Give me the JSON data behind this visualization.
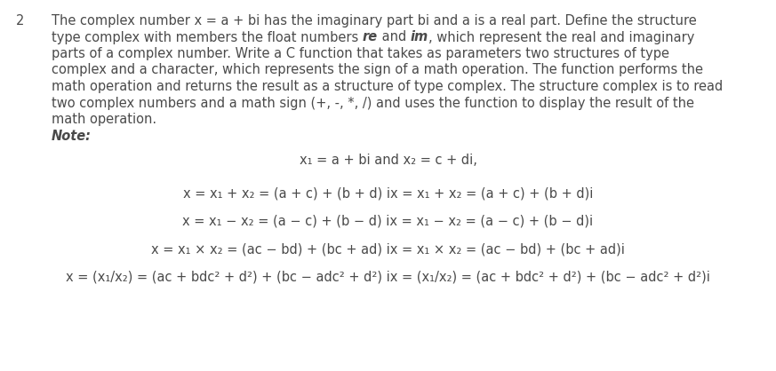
{
  "background_color": "#ffffff",
  "question_number": "2",
  "paragraph_lines": [
    "The complex number x = a + bi has the imaginary part bi and a is a real part. Define the structure",
    "parts of a complex number. Write a C function that takes as parameters two structures of type",
    "complex and a character, which represents the sign of a math operation. The function performs the",
    "math operation and returns the result as a structure of type complex. The structure complex is to read",
    "two complex numbers and a math sign (+, -, *, /) and uses the function to display the result of the",
    "math operation."
  ],
  "line1_seg1": "type complex with members the float numbers ",
  "line1_re": "re",
  "line1_seg3": " and ",
  "line1_im": "im",
  "line1_seg5": ", which represent the real and imaginary",
  "note_label": "Note:",
  "eq0": "x₁ = a + bi and x₂ = c + di,",
  "eq1": "x = x₁ + x₂ = (a + c) + (b + d) ix = x₁ + x₂ = (a + c) + (b + d)i",
  "eq2": "x = x₁ − x₂ = (a − c) + (b − d) ix = x₁ − x₂ = (a − c) + (b − d)i",
  "eq3": "x = x₁ × x₂ = (ac − bd) + (bc + ad) ix = x₁ × x₂ = (ac − bd) + (bc + ad)i",
  "eq4": "x = (x₁/x₂) = (ac + bdc² + d²) + (bc − adc² + d²) ix = (x₁/x₂) = (ac + bdc² + d²) + (bc − adc² + d²)i",
  "text_color": "#4a4a4a",
  "font_size_main": 10.5,
  "font_size_eq": 10.5,
  "fig_width": 8.73,
  "fig_height": 4.18,
  "dpi": 100
}
